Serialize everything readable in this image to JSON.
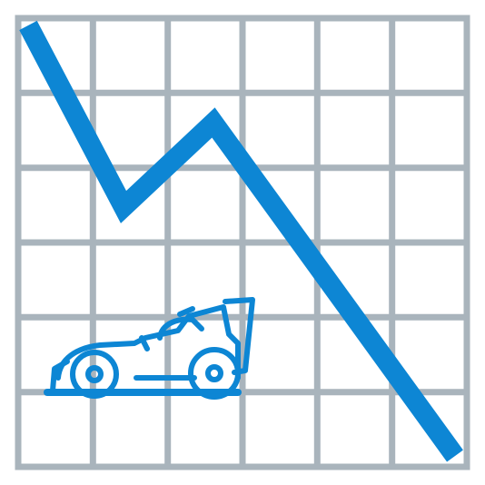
{
  "icon": {
    "name": "declining-racing-chart-icon",
    "grid": {
      "columns": 6,
      "rows": 6
    },
    "colors": {
      "background": "#ffffff",
      "grid": "#a9b4bc",
      "accent": "#0d86d4"
    },
    "parts": [
      "grid-icon",
      "declining-trend-line-icon",
      "race-car-icon"
    ]
  }
}
